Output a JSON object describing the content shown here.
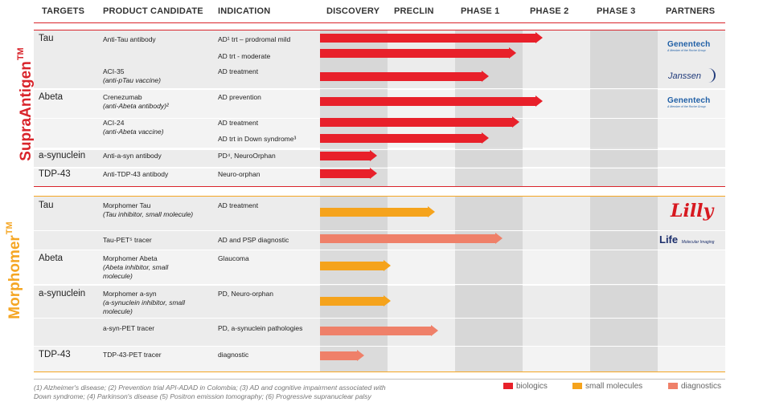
{
  "headers": {
    "targets": "TARGETS",
    "product": "PRODUCT CANDIDATE",
    "indication": "INDICATION",
    "discovery": "DISCOVERY",
    "preclin": "PRECLIN",
    "phase1": "PHASE 1",
    "phase2": "PHASE 2",
    "phase3": "PHASE 3",
    "partners": "PARTNERS"
  },
  "sections": {
    "supra": {
      "label": "SupraAntigen",
      "tm": "TM",
      "color": "#d9242b"
    },
    "morph": {
      "label": "Morphomer",
      "tm": "TM",
      "color": "#f5a623"
    }
  },
  "supra_rows": {
    "tau_target": "Tau",
    "anti_tau": "Anti-Tau antibody",
    "ind_tau1": "AD¹ trt – prodromal mild",
    "ind_tau2": "AD trt - moderate",
    "aci35": "ACI-35",
    "aci35_sub": "(anti-pTau vaccine)",
    "ind_aci35": "AD treatment",
    "abeta_target": "Abeta",
    "crenezumab": "Crenezumab",
    "crenezumab_sub": "(anti-Abeta antibody)²",
    "ind_cren": "AD prevention",
    "aci24": "ACI-24",
    "aci24_sub": "(anti-Abeta vaccine)",
    "ind_aci24a": "AD treatment",
    "ind_aci24b": "AD trt in Down syndrome³",
    "asyn_target": "a-synuclein",
    "anti_asyn": "Anti-a-syn antibody",
    "ind_asyn": "PD⁴, NeuroOrphan",
    "tdp_target": "TDP-43",
    "anti_tdp": "Anti-TDP-43 antibody",
    "ind_tdp": "Neuro-orphan"
  },
  "morph_rows": {
    "tau_target": "Tau",
    "morph_tau": "Morphomer Tau",
    "morph_tau_sub": "(Tau inhibitor, small molecule)",
    "ind_morph_tau": "AD treatment",
    "tau_pet": "Tau-PET⁵  tracer",
    "ind_tau_pet": "AD and PSP diagnostic",
    "abeta_target": "Abeta",
    "morph_abeta": "Morphomer Abeta",
    "morph_abeta_sub1": "(Abeta inhibitor, small",
    "morph_abeta_sub2": "molecule)",
    "ind_morph_abeta": "Glaucoma",
    "asyn_target": "a-synuclein",
    "morph_asyn": "Morphomer a-syn",
    "morph_asyn_sub1": "(a-synuclein inhibitor, small",
    "morph_asyn_sub2": "molecule)",
    "ind_morph_asyn": "PD, Neuro-orphan",
    "asyn_pet": "a-syn-PET tracer",
    "ind_asyn_pet": "PD, a-synuclein pathologies",
    "tdp_target": "TDP-43",
    "tdp_pet": "TDP-43-PET tracer",
    "ind_tdp_pet": "diagnostic"
  },
  "partners": {
    "genentech": "Genentech",
    "genentech_sub": "A Member of the Roche Group",
    "janssen": "Janssen",
    "lilly": "Lilly",
    "life": "Life",
    "life_sub": "Molecular Imaging"
  },
  "progress_stages": [
    "Discovery",
    "Preclin",
    "Phase 1",
    "Phase 2",
    "Phase 3"
  ],
  "bars": [
    {
      "product": "Anti-Tau antibody",
      "indication": "AD trt – prodromal mild",
      "type": "biologics",
      "progress": 0.66
    },
    {
      "product": "Anti-Tau antibody",
      "indication": "AD trt - moderate",
      "type": "biologics",
      "progress": 0.58
    },
    {
      "product": "ACI-35",
      "indication": "AD treatment",
      "type": "biologics",
      "progress": 0.5
    },
    {
      "product": "Crenezumab",
      "indication": "AD prevention",
      "type": "biologics",
      "progress": 0.66
    },
    {
      "product": "ACI-24",
      "indication": "AD treatment",
      "type": "biologics",
      "progress": 0.59
    },
    {
      "product": "ACI-24",
      "indication": "AD trt in Down syndrome",
      "type": "biologics",
      "progress": 0.5
    },
    {
      "product": "Anti-a-syn antibody",
      "indication": "PD, NeuroOrphan",
      "type": "biologics",
      "progress": 0.17
    },
    {
      "product": "Anti-TDP-43 antibody",
      "indication": "Neuro-orphan",
      "type": "biologics",
      "progress": 0.17
    },
    {
      "product": "Morphomer Tau",
      "indication": "AD treatment",
      "type": "small molecules",
      "progress": 0.34
    },
    {
      "product": "Tau-PET tracer",
      "indication": "AD and PSP diagnostic",
      "type": "diagnostics",
      "progress": 0.54
    },
    {
      "product": "Morphomer Abeta",
      "indication": "Glaucoma",
      "type": "small molecules",
      "progress": 0.21
    },
    {
      "product": "Morphomer a-syn",
      "indication": "PD, Neuro-orphan",
      "type": "small molecules",
      "progress": 0.21
    },
    {
      "product": "a-syn-PET tracer",
      "indication": "PD, a-synuclein pathologies",
      "type": "diagnostics",
      "progress": 0.35
    },
    {
      "product": "TDP-43-PET tracer",
      "indication": "diagnostic",
      "type": "diagnostics",
      "progress": 0.13
    }
  ],
  "colors": {
    "biologics": "#e8202a",
    "small_molecules": "#f5a31c",
    "diagnostics": "#ef8069"
  },
  "footnote": {
    "line1": "(1) Alzheimer's disease; (2) Prevention trial API-ADAD in Colombia; (3) AD and cognitive impairment associated with",
    "line2": "Down syndrome; (4) Parkinson's disease (5) Positron emission tomography; (6) Progressive supranuclear palsy"
  },
  "legend": {
    "biologics": "biologics",
    "small_molecules": "small molecules",
    "diagnostics": "diagnostics"
  }
}
